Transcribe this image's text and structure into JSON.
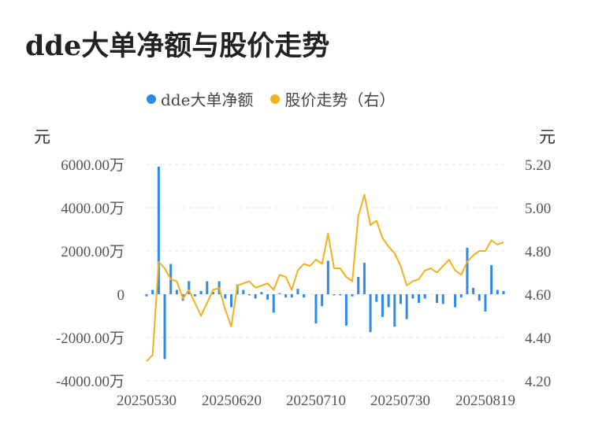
{
  "page": {
    "title": "dde大单净额与股价走势"
  },
  "colors": {
    "bars": "#2e8ae6",
    "line": "#f2b01e",
    "grid": "#e4e4e4"
  },
  "chart_data": {
    "type": "bar+line",
    "title": "dde大单净额与股价走势",
    "y_left_unit": "元",
    "y_right_unit": "元",
    "legend": [
      {
        "label": "dde大单净额",
        "color": "#2e8ae6"
      },
      {
        "label": "股价走势（右）",
        "color": "#f2b01e"
      }
    ],
    "x_tick_labels": [
      "20250530",
      "20250620",
      "20250710",
      "20250730",
      "20250819"
    ],
    "y_left": {
      "min": -4000,
      "max": 6000,
      "ticks": [
        6000,
        4000,
        2000,
        0,
        -2000,
        -4000
      ],
      "tick_labels": [
        "6000.00万",
        "4000.00万",
        "2000.00万",
        "0",
        "-2000.00万",
        "-4000.00万"
      ]
    },
    "y_right": {
      "min": 4.2,
      "max": 5.2,
      "ticks": [
        5.2,
        5.0,
        4.8,
        4.6,
        4.4,
        4.2
      ],
      "tick_labels": [
        "5.20",
        "5.00",
        "4.80",
        "4.60",
        "4.40",
        "4.20"
      ]
    },
    "grid": true,
    "series": [
      {
        "name": "dde大单净额",
        "type": "bar",
        "unit": "万元",
        "values": [
          -100,
          200,
          5900,
          -3000,
          1400,
          200,
          -300,
          600,
          -100,
          150,
          600,
          100,
          600,
          -200,
          -600,
          450,
          200,
          -50,
          -200,
          100,
          -250,
          -850,
          50,
          -150,
          -150,
          250,
          -150,
          0,
          -1350,
          -550,
          1550,
          -50,
          -50,
          -1450,
          -100,
          800,
          1450,
          -1750,
          -350,
          -1050,
          -600,
          -1500,
          -450,
          -1150,
          -200,
          -400,
          -200,
          0,
          -400,
          -450,
          0,
          -600,
          -150,
          2150,
          300,
          -300,
          -800,
          1350,
          200,
          150
        ]
      },
      {
        "name": "股价走势（右）",
        "type": "line",
        "unit": "元",
        "values": [
          4.29,
          4.32,
          4.75,
          4.72,
          4.67,
          4.66,
          4.58,
          4.62,
          4.56,
          4.5,
          4.56,
          4.62,
          4.63,
          4.53,
          4.45,
          4.64,
          4.65,
          4.66,
          4.63,
          4.64,
          4.65,
          4.62,
          4.69,
          4.68,
          4.62,
          4.71,
          4.74,
          4.73,
          4.76,
          4.74,
          4.88,
          4.72,
          4.72,
          4.68,
          4.66,
          4.96,
          5.06,
          4.92,
          4.94,
          4.86,
          4.82,
          4.79,
          4.73,
          4.64,
          4.66,
          4.67,
          4.71,
          4.72,
          4.7,
          4.73,
          4.76,
          4.71,
          4.69,
          4.75,
          4.78,
          4.8,
          4.8,
          4.85,
          4.83,
          4.84
        ]
      }
    ]
  }
}
